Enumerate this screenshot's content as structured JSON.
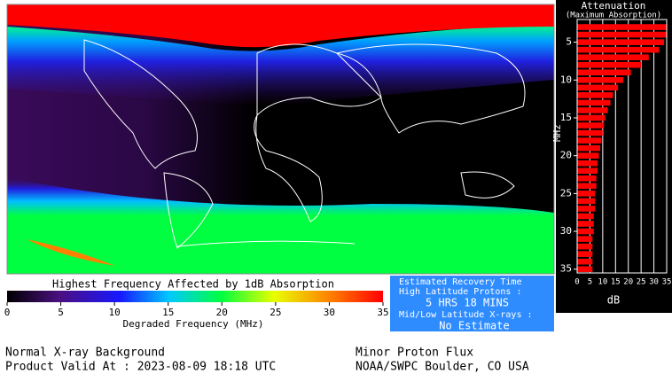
{
  "chart_data": {
    "type": "hbar",
    "title": "Attenuation",
    "subtitle": "(Maximum Absorption)",
    "y_label": "MHz",
    "x_label": "dB",
    "color": "#ff0000",
    "y": [
      3,
      4,
      5,
      6,
      7,
      8,
      9,
      10,
      11,
      12,
      13,
      14,
      15,
      16,
      17,
      18,
      19,
      20,
      21,
      22,
      23,
      24,
      25,
      26,
      27,
      28,
      29,
      30,
      31,
      32,
      33,
      34,
      35
    ],
    "values": [
      35,
      35,
      34,
      32,
      28,
      25,
      21,
      18,
      16,
      14,
      13,
      12,
      11,
      10.5,
      10,
      9.5,
      9,
      8.5,
      8,
      8,
      7.5,
      7.5,
      7,
      7,
      7,
      6.5,
      6.5,
      6.5,
      6,
      6,
      6,
      6,
      6
    ],
    "xlim": [
      0,
      35
    ],
    "xticks": [
      0,
      5,
      10,
      15,
      20,
      25,
      30,
      35
    ],
    "ylim": [
      2,
      35.5
    ],
    "yticks": [
      5,
      10,
      15,
      20,
      25,
      30,
      35
    ],
    "grid": true
  },
  "colorbar": {
    "title": "Highest Frequency Affected by 1dB Absorption",
    "label": "Degraded Frequency (MHz)",
    "lim": [
      0,
      35
    ],
    "ticks": [
      0,
      5,
      10,
      15,
      20,
      25,
      30,
      35
    ]
  },
  "recovery": {
    "title": "Estimated Recovery Time",
    "high_label": "High Latitude Protons :",
    "high_value": "5 HRS 18 MINS",
    "low_label": "Mid/Low Latitude X-rays :",
    "low_value": "No Estimate"
  },
  "footer": {
    "xray": "Normal X-ray Background",
    "valid": "Product Valid At : 2023-08-09 18:18 UTC",
    "proton": "Minor Proton Flux",
    "source": "NOAA/SWPC Boulder, CO USA"
  }
}
